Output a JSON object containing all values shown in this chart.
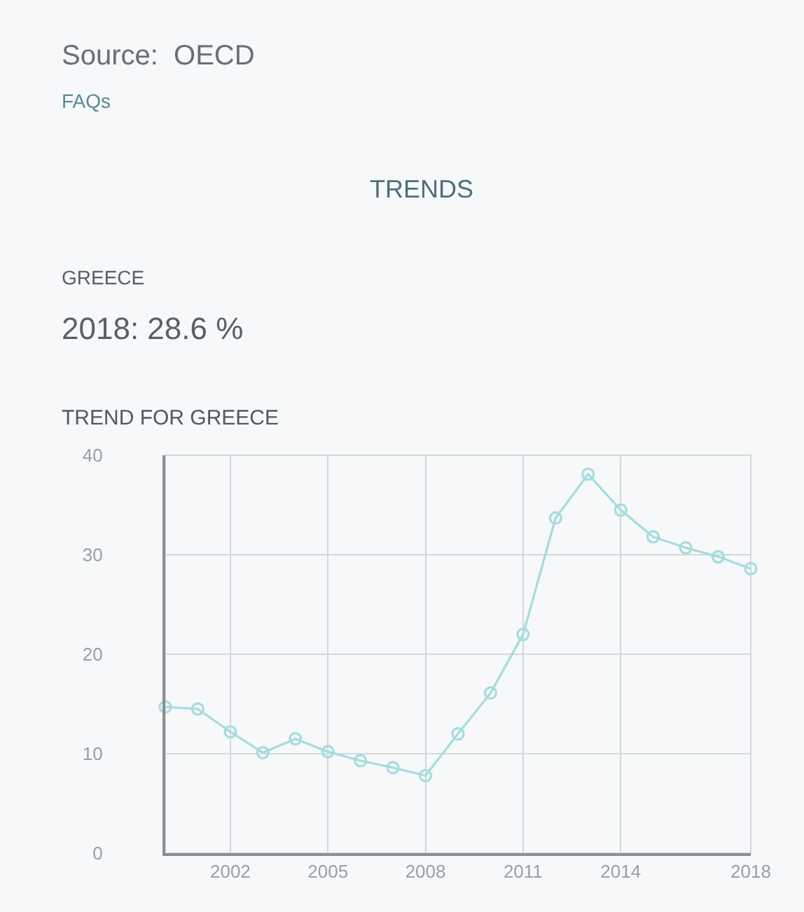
{
  "chart_data": {
    "type": "line",
    "title": "TREND FOR GREECE",
    "annotations": [
      "Source:  OECD",
      "FAQs",
      "TRENDS",
      "GREECE",
      "2018: 28.6 %"
    ],
    "x": [
      2000,
      2001,
      2002,
      2003,
      2004,
      2005,
      2006,
      2007,
      2008,
      2009,
      2010,
      2011,
      2012,
      2013,
      2014,
      2015,
      2016,
      2017,
      2018
    ],
    "series": [
      {
        "color": "#a6dcdc",
        "values": [
          14.7,
          14.5,
          12.2,
          10.1,
          11.5,
          10.2,
          9.3,
          8.6,
          7.8,
          12.0,
          16.1,
          22.0,
          33.7,
          38.1,
          34.5,
          31.8,
          30.7,
          29.8,
          28.6
        ]
      }
    ],
    "xlim": [
      2000,
      2018
    ],
    "xticks": [
      2002,
      2005,
      2008,
      2011,
      2014,
      2018
    ],
    "ylim": [
      0,
      40
    ],
    "yticks": [
      0,
      10,
      20,
      30,
      40
    ],
    "grid": true,
    "marker": "circle",
    "line_style": "solid"
  }
}
